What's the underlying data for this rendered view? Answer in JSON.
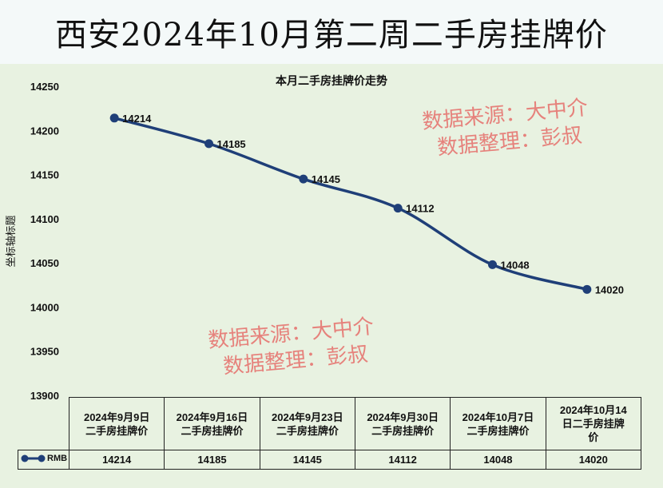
{
  "header": {
    "title": "西安2024年10月第二周二手房挂牌价"
  },
  "watermark": {
    "line1": "数据来源：大中介",
    "line2": "数据整理：彭叔"
  },
  "chart_data": {
    "type": "line",
    "title": "本月二手房挂牌价走势",
    "ylabel": "坐标轴标题",
    "xlabel": "",
    "ylim": [
      13900,
      14250
    ],
    "ytick_step": 50,
    "yticks": [
      "14250",
      "14200",
      "14150",
      "14100",
      "14050",
      "14000",
      "13950",
      "13900"
    ],
    "categories": [
      "2024年9月9日二手房挂牌价",
      "2024年9月16日二手房挂牌价",
      "2024年9月23日二手房挂牌价",
      "2024年9月30日二手房挂牌价",
      "2024年10月7日二手房挂牌价",
      "2024年10月14日二手房挂牌价"
    ],
    "category_lines": [
      [
        "2024年9月9日",
        "二手房挂牌价"
      ],
      [
        "2024年9月16日",
        "二手房挂牌价"
      ],
      [
        "2024年9月23日",
        "二手房挂牌价"
      ],
      [
        "2024年9月30日",
        "二手房挂牌价"
      ],
      [
        "2024年10月7日",
        "二手房挂牌价"
      ],
      [
        "2024年10月14",
        "日二手房挂牌",
        "价"
      ]
    ],
    "series": [
      {
        "name": "RMB",
        "values": [
          14214,
          14185,
          14145,
          14112,
          14048,
          14020
        ]
      }
    ],
    "data_labels": [
      "14214",
      "14185",
      "14145",
      "14112",
      "14048",
      "14020"
    ],
    "grid": false,
    "legend": "in data table",
    "colors": {
      "line": "#1f3f78",
      "background": "#e8f2e1"
    }
  }
}
